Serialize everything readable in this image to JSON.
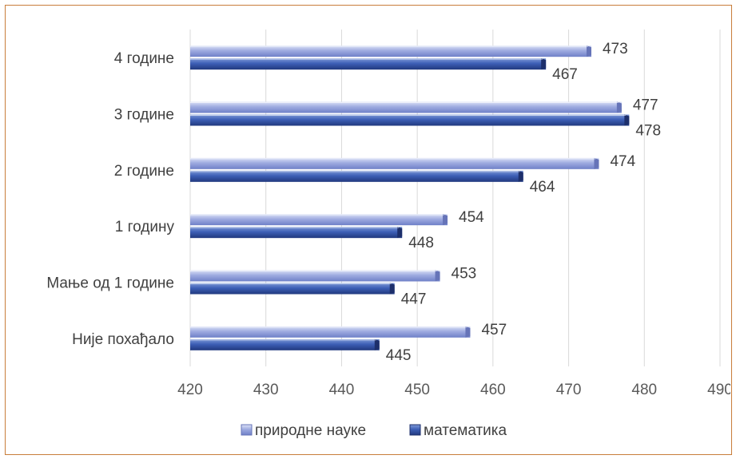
{
  "chart_data": {
    "type": "bar",
    "orientation": "horizontal",
    "categories": [
      "4 године",
      "3 године",
      "2 године",
      "1 годину",
      "Мање од 1 године",
      "Није похађало"
    ],
    "series": [
      {
        "name": "природне науке",
        "values": [
          473,
          477,
          474,
          454,
          453,
          457
        ],
        "color": "#8c9ad6"
      },
      {
        "name": "математика",
        "values": [
          467,
          478,
          464,
          448,
          447,
          445
        ],
        "color": "#3a5bb0"
      }
    ],
    "xlim": [
      420,
      490
    ],
    "xticks": [
      420,
      430,
      440,
      450,
      460,
      470,
      480,
      490
    ],
    "grid": true,
    "legend_position": "bottom",
    "title": "",
    "xlabel": "",
    "ylabel": ""
  },
  "frame_color": "#c87d3a"
}
